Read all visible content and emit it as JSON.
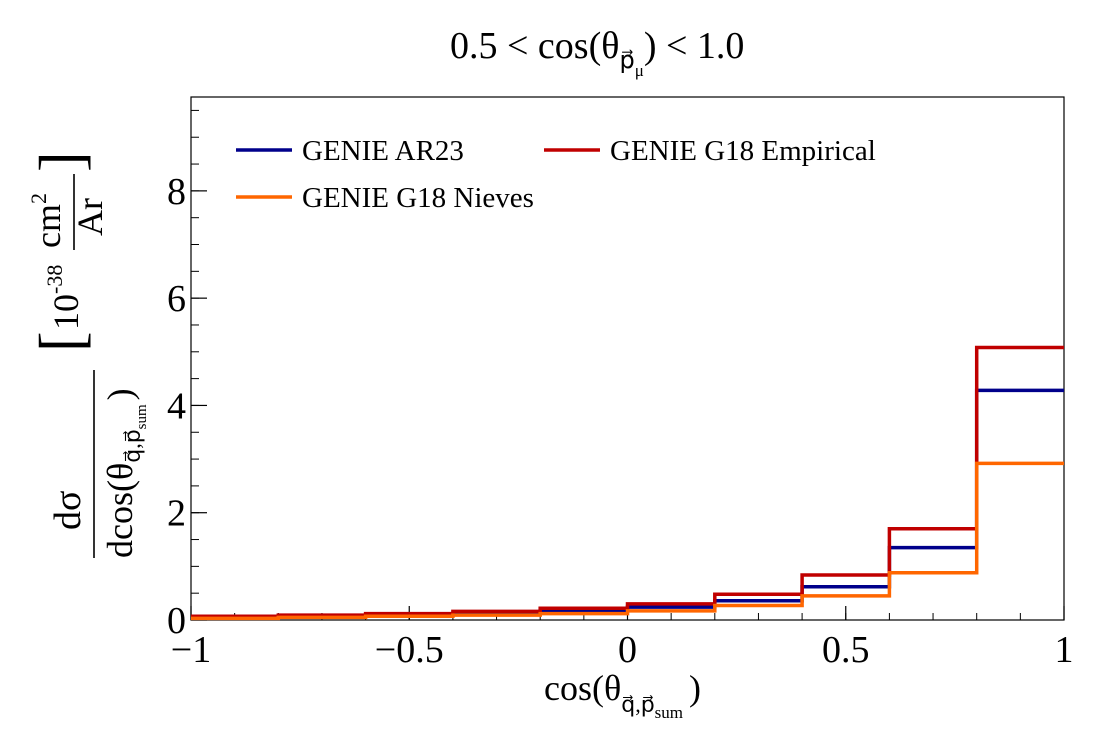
{
  "chart_data": {
    "type": "line",
    "title": {
      "main": "0.5 < cos(θ",
      "sub": "p⃗",
      "subsub": "μ",
      "close": ") < 1.0"
    },
    "xlabel": {
      "main": "cos(θ",
      "sub": "q⃗,p⃗",
      "subsub": "sum",
      "close": ")"
    },
    "ylabel": {
      "numerator": "dσ",
      "denominator_main": "dcos(θ",
      "denominator_sub": "q⃗,p⃗",
      "denominator_subsub": "sum",
      "denominator_close": ")",
      "unit_base": "10",
      "unit_exp": "-38",
      "unit_num": "cm",
      "unit_num_exp": "2",
      "unit_den": "Ar"
    },
    "xlim": [
      -1,
      1
    ],
    "ylim": [
      0,
      9.75
    ],
    "x_ticks": [
      -1,
      -0.5,
      0,
      0.5,
      1
    ],
    "x_tick_labels": [
      "−1",
      "−0.5",
      "0",
      "0.5",
      "1"
    ],
    "y_ticks": [
      0,
      2,
      4,
      6,
      8
    ],
    "y_tick_labels": [
      "0",
      "2",
      "4",
      "6",
      "8"
    ],
    "bin_edges": [
      -1,
      -0.8,
      -0.6,
      -0.4,
      -0.2,
      0,
      0.2,
      0.4,
      0.6,
      0.8,
      1
    ],
    "series": [
      {
        "name": "GENIE AR23",
        "color": "#00008b",
        "values": [
          0.05,
          0.07,
          0.09,
          0.12,
          0.17,
          0.24,
          0.36,
          0.62,
          1.35,
          4.28
        ]
      },
      {
        "name": "GENIE G18 Empirical",
        "color": "#c00000",
        "values": [
          0.07,
          0.09,
          0.12,
          0.16,
          0.22,
          0.3,
          0.48,
          0.84,
          1.7,
          5.08
        ]
      },
      {
        "name": "GENIE G18 Nieves",
        "color": "#ff6600",
        "values": [
          0.03,
          0.05,
          0.07,
          0.09,
          0.12,
          0.17,
          0.27,
          0.45,
          0.88,
          2.92
        ]
      }
    ],
    "legend": {
      "placement": "top-left",
      "entries": [
        "GENIE AR23",
        "GENIE G18 Empirical",
        "GENIE G18 Nieves"
      ]
    },
    "grid": false
  }
}
